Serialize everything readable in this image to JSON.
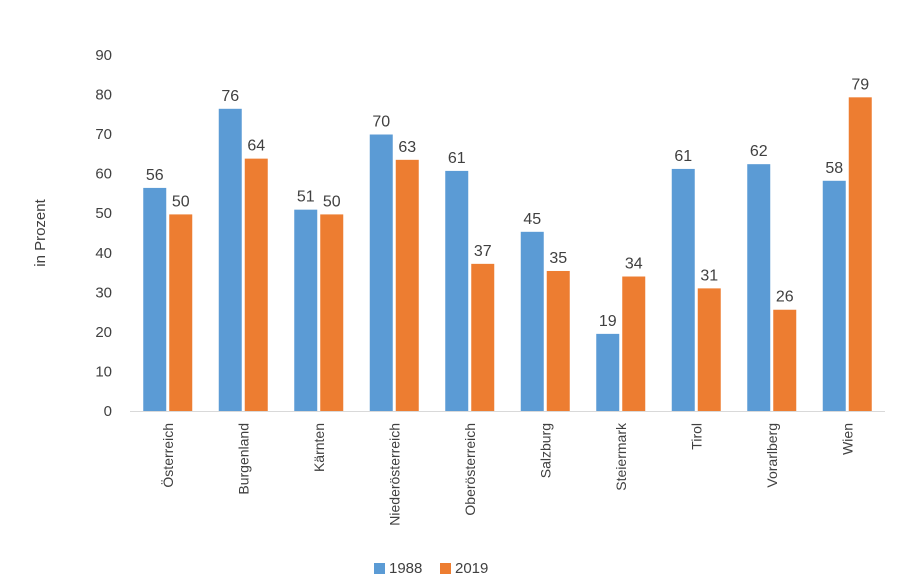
{
  "chart_data": {
    "type": "bar",
    "title": "",
    "xlabel": "",
    "ylabel": "in Prozent",
    "ylim": [
      0,
      90
    ],
    "yticks": [
      0,
      10,
      20,
      30,
      40,
      50,
      60,
      70,
      80,
      90
    ],
    "grid": false,
    "legend_position": "bottom",
    "categories": [
      "Österreich",
      "Burgenland",
      "Kärnten",
      "Niederösterreich",
      "Oberösterreich",
      "Salzburg",
      "Steiermark",
      "Tirol",
      "Vorarlberg",
      "Wien"
    ],
    "series": [
      {
        "name": "1988",
        "color": "#5b9bd5",
        "values": [
          56,
          76,
          51,
          70,
          61,
          45,
          19,
          61,
          62,
          58
        ],
        "heights": [
          56.4,
          76.4,
          50.9,
          69.9,
          60.7,
          45.3,
          19.5,
          61.2,
          62.4,
          58.2
        ]
      },
      {
        "name": "2019",
        "color": "#ed7d31",
        "values": [
          50,
          64,
          50,
          63,
          37,
          35,
          34,
          31,
          26,
          79
        ],
        "heights": [
          49.7,
          63.8,
          49.7,
          63.5,
          37.2,
          35.4,
          34.0,
          31.0,
          25.6,
          79.3
        ]
      }
    ]
  }
}
